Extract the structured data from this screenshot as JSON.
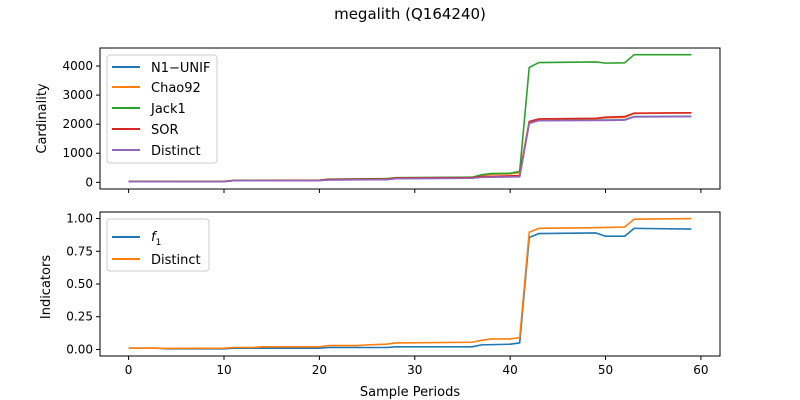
{
  "figure": {
    "title": "megalith (Q164240)"
  },
  "chart_data": [
    {
      "type": "line",
      "xlabel": "",
      "ylabel": "Cardinality",
      "xlim": [
        -3,
        62
      ],
      "ylim": [
        -230,
        4620
      ],
      "xticks": [
        0,
        10,
        20,
        30,
        40,
        50,
        60
      ],
      "yticks": [
        0,
        1000,
        2000,
        3000,
        4000
      ],
      "ytick_labels": [
        "0",
        "1000",
        "2000",
        "3000",
        "4000"
      ],
      "grid": false,
      "legend_position": "upper-left",
      "series": [
        {
          "name": "N1−UNIF",
          "color": "#1f77b4",
          "points": [
            [
              0,
              20
            ],
            [
              10,
              25
            ],
            [
              11,
              55
            ],
            [
              20,
              65
            ],
            [
              21,
              85
            ],
            [
              27,
              95
            ],
            [
              28,
              130
            ],
            [
              36,
              145
            ],
            [
              37,
              180
            ],
            [
              41,
              200
            ],
            [
              42,
              2040
            ],
            [
              43,
              2130
            ],
            [
              49,
              2140
            ],
            [
              50,
              2140
            ],
            [
              52,
              2150
            ],
            [
              53,
              2260
            ],
            [
              59,
              2270
            ]
          ]
        },
        {
          "name": "Chao92",
          "color": "#ff7f0e",
          "points": [
            [
              0,
              25
            ],
            [
              10,
              30
            ],
            [
              11,
              60
            ],
            [
              20,
              70
            ],
            [
              21,
              100
            ],
            [
              27,
              115
            ],
            [
              28,
              150
            ],
            [
              36,
              170
            ],
            [
              37,
              240
            ],
            [
              38,
              280
            ],
            [
              40,
              290
            ],
            [
              41,
              330
            ],
            [
              42,
              2080
            ],
            [
              43,
              2170
            ],
            [
              49,
              2190
            ],
            [
              50,
              2220
            ],
            [
              52,
              2230
            ],
            [
              53,
              2370
            ],
            [
              59,
              2390
            ]
          ]
        },
        {
          "name": "Jack1",
          "color": "#2ca02c",
          "points": [
            [
              0,
              30
            ],
            [
              10,
              35
            ],
            [
              11,
              65
            ],
            [
              20,
              75
            ],
            [
              21,
              110
            ],
            [
              27,
              125
            ],
            [
              28,
              160
            ],
            [
              36,
              175
            ],
            [
              37,
              260
            ],
            [
              38,
              300
            ],
            [
              40,
              310
            ],
            [
              41,
              380
            ],
            [
              42,
              3950
            ],
            [
              43,
              4120
            ],
            [
              49,
              4140
            ],
            [
              50,
              4100
            ],
            [
              52,
              4110
            ],
            [
              53,
              4390
            ],
            [
              59,
              4390
            ]
          ]
        },
        {
          "name": "SOR",
          "color": "#d62728",
          "points": [
            [
              0,
              25
            ],
            [
              10,
              30
            ],
            [
              11,
              60
            ],
            [
              20,
              70
            ],
            [
              21,
              100
            ],
            [
              27,
              110
            ],
            [
              28,
              145
            ],
            [
              36,
              160
            ],
            [
              37,
              200
            ],
            [
              41,
              230
            ],
            [
              42,
              2090
            ],
            [
              43,
              2180
            ],
            [
              49,
              2200
            ],
            [
              50,
              2240
            ],
            [
              52,
              2260
            ],
            [
              53,
              2380
            ],
            [
              59,
              2390
            ]
          ]
        },
        {
          "name": "Distinct",
          "color": "#9467bd",
          "points": [
            [
              0,
              20
            ],
            [
              10,
              25
            ],
            [
              11,
              55
            ],
            [
              20,
              60
            ],
            [
              21,
              80
            ],
            [
              27,
              90
            ],
            [
              28,
              125
            ],
            [
              36,
              140
            ],
            [
              37,
              170
            ],
            [
              41,
              190
            ],
            [
              42,
              2030
            ],
            [
              43,
              2120
            ],
            [
              49,
              2130
            ],
            [
              50,
              2130
            ],
            [
              52,
              2140
            ],
            [
              53,
              2250
            ],
            [
              59,
              2260
            ]
          ]
        }
      ]
    },
    {
      "type": "line",
      "xlabel": "Sample Periods",
      "ylabel": "Indicators",
      "xlim": [
        -3,
        62
      ],
      "ylim": [
        -0.05,
        1.05
      ],
      "xticks": [
        0,
        10,
        20,
        30,
        40,
        50,
        60
      ],
      "yticks": [
        0,
        0.25,
        0.5,
        0.75,
        1.0
      ],
      "ytick_labels": [
        "0.00",
        "0.25",
        "0.50",
        "0.75",
        "1.00"
      ],
      "grid": false,
      "legend_position": "upper-left",
      "series": [
        {
          "name": "f",
          "name_subscript": "1",
          "color": "#1f77b4",
          "points": [
            [
              0,
              0.01
            ],
            [
              3,
              0.01
            ],
            [
              4,
              0.005
            ],
            [
              10,
              0.005
            ],
            [
              11,
              0.01
            ],
            [
              20,
              0.01
            ],
            [
              21,
              0.015
            ],
            [
              27,
              0.015
            ],
            [
              28,
              0.02
            ],
            [
              36,
              0.02
            ],
            [
              37,
              0.035
            ],
            [
              40,
              0.04
            ],
            [
              41,
              0.05
            ],
            [
              42,
              0.855
            ],
            [
              43,
              0.885
            ],
            [
              49,
              0.89
            ],
            [
              50,
              0.865
            ],
            [
              52,
              0.865
            ],
            [
              53,
              0.925
            ],
            [
              59,
              0.92
            ]
          ]
        },
        {
          "name": "Distinct",
          "color": "#ff7f0e",
          "points": [
            [
              0,
              0.01
            ],
            [
              3,
              0.01
            ],
            [
              4,
              0.008
            ],
            [
              10,
              0.01
            ],
            [
              11,
              0.015
            ],
            [
              13,
              0.015
            ],
            [
              14,
              0.02
            ],
            [
              20,
              0.02
            ],
            [
              21,
              0.03
            ],
            [
              24,
              0.03
            ],
            [
              25,
              0.035
            ],
            [
              27,
              0.04
            ],
            [
              28,
              0.05
            ],
            [
              36,
              0.055
            ],
            [
              37,
              0.07
            ],
            [
              38,
              0.08
            ],
            [
              40,
              0.08
            ],
            [
              41,
              0.09
            ],
            [
              42,
              0.895
            ],
            [
              43,
              0.925
            ],
            [
              49,
              0.93
            ],
            [
              52,
              0.935
            ],
            [
              53,
              0.995
            ],
            [
              59,
              1.0
            ]
          ]
        }
      ]
    }
  ]
}
